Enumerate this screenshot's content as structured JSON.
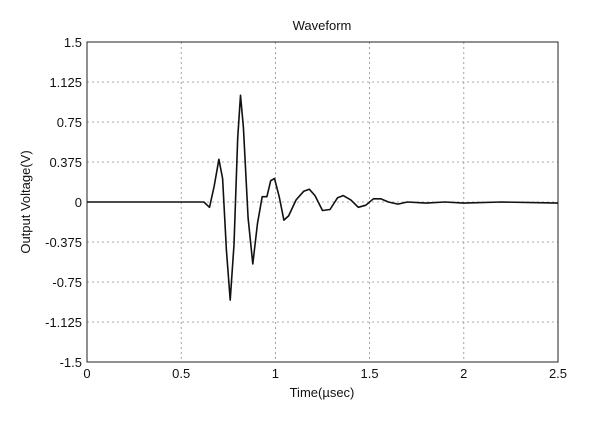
{
  "chart_data": {
    "type": "line",
    "title": "Waveform",
    "xlabel": "Time(µsec)",
    "ylabel": "Output Voltage(V)",
    "xlim": [
      0,
      2.5
    ],
    "ylim": [
      -1.5,
      1.5
    ],
    "grid": true,
    "x_ticks": [
      "0",
      "0.5",
      "1",
      "1.5",
      "2",
      "2.5"
    ],
    "y_ticks": [
      "1.5",
      "1.125",
      "0.75",
      "0.375",
      "0",
      "-0.375",
      "-0.75",
      "-1.125",
      "-1.5"
    ],
    "series": [
      {
        "points": [
          [
            0.0,
            0.0
          ],
          [
            0.5,
            0.0
          ],
          [
            0.62,
            0.0
          ],
          [
            0.65,
            -0.05
          ],
          [
            0.675,
            0.15
          ],
          [
            0.7,
            0.4
          ],
          [
            0.72,
            0.22
          ],
          [
            0.74,
            -0.45
          ],
          [
            0.76,
            -0.92
          ],
          [
            0.78,
            -0.4
          ],
          [
            0.8,
            0.6
          ],
          [
            0.815,
            1.0
          ],
          [
            0.83,
            0.7
          ],
          [
            0.855,
            -0.15
          ],
          [
            0.88,
            -0.58
          ],
          [
            0.905,
            -0.2
          ],
          [
            0.93,
            0.05
          ],
          [
            0.955,
            0.05
          ],
          [
            0.975,
            0.2
          ],
          [
            0.995,
            0.22
          ],
          [
            1.02,
            0.05
          ],
          [
            1.045,
            -0.17
          ],
          [
            1.07,
            -0.13
          ],
          [
            1.11,
            0.02
          ],
          [
            1.15,
            0.1
          ],
          [
            1.18,
            0.12
          ],
          [
            1.21,
            0.06
          ],
          [
            1.25,
            -0.08
          ],
          [
            1.29,
            -0.07
          ],
          [
            1.33,
            0.04
          ],
          [
            1.36,
            0.06
          ],
          [
            1.4,
            0.02
          ],
          [
            1.44,
            -0.05
          ],
          [
            1.48,
            -0.03
          ],
          [
            1.52,
            0.03
          ],
          [
            1.56,
            0.03
          ],
          [
            1.6,
            0.0
          ],
          [
            1.65,
            -0.02
          ],
          [
            1.7,
            0.0
          ],
          [
            1.8,
            -0.01
          ],
          [
            1.9,
            0.0
          ],
          [
            2.0,
            -0.01
          ],
          [
            2.2,
            0.0
          ],
          [
            2.5,
            -0.01
          ]
        ]
      }
    ]
  }
}
